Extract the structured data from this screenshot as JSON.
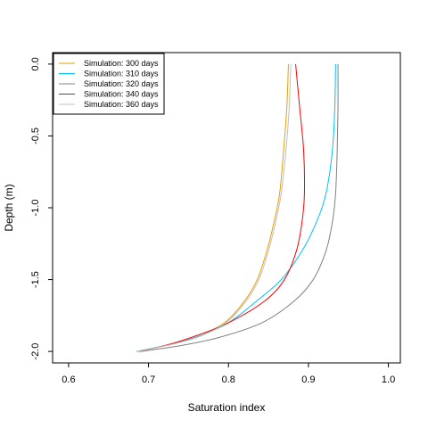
{
  "chart_data": {
    "type": "line",
    "xlabel": "Saturation index",
    "ylabel": "Depth (m)",
    "xlim": [
      0.58,
      1.015
    ],
    "ylim": [
      -2.08,
      0.08
    ],
    "x_ticks": [
      0.6,
      0.7,
      0.8,
      0.9,
      1.0
    ],
    "x_tick_labels": [
      "0.6",
      "0.7",
      "0.8",
      "0.9",
      "1.0"
    ],
    "y_ticks": [
      0.0,
      -0.5,
      -1.0,
      -1.5,
      -2.0
    ],
    "y_tick_labels": [
      "0.0",
      "-0.5",
      "-1.0",
      "-1.5",
      "-2.0"
    ],
    "grid": false,
    "legend_position": "top-left",
    "series": [
      {
        "name": "Simulation: 300 days",
        "color": "#E69F00",
        "x": [
          0.875,
          0.873,
          0.869,
          0.864,
          0.857,
          0.848,
          0.836,
          0.82,
          0.795,
          0.76,
          0.72,
          0.685
        ],
        "y": [
          0.0,
          -0.3,
          -0.6,
          -0.9,
          -1.1,
          -1.3,
          -1.5,
          -1.65,
          -1.8,
          -1.9,
          -1.96,
          -2.0
        ]
      },
      {
        "name": "Simulation: 310 days",
        "color": "#00BFFF",
        "x": [
          0.934,
          0.933,
          0.93,
          0.922,
          0.91,
          0.892,
          0.866,
          0.835,
          0.8,
          0.76,
          0.72,
          0.685
        ],
        "y": [
          0.0,
          -0.3,
          -0.6,
          -0.9,
          -1.1,
          -1.3,
          -1.5,
          -1.65,
          -1.8,
          -1.9,
          -1.96,
          -2.0
        ]
      },
      {
        "name": "Simulation: 320 days",
        "color": "#808080",
        "x": [
          0.937,
          0.937,
          0.936,
          0.934,
          0.93,
          0.922,
          0.906,
          0.882,
          0.842,
          0.79,
          0.74,
          0.69
        ],
        "y": [
          0.0,
          -0.3,
          -0.6,
          -0.9,
          -1.1,
          -1.3,
          -1.5,
          -1.65,
          -1.8,
          -1.9,
          -1.96,
          -2.0
        ]
      },
      {
        "name": "Simulation: 340 days",
        "color": "#FF0000",
        "x": [
          0.884,
          0.889,
          0.894,
          0.895,
          0.892,
          0.885,
          0.87,
          0.845,
          0.8,
          0.755,
          0.72,
          0.688
        ],
        "y": [
          0.0,
          -0.3,
          -0.6,
          -0.9,
          -1.1,
          -1.3,
          -1.5,
          -1.65,
          -1.8,
          -1.9,
          -1.96,
          -2.0
        ]
      },
      {
        "name": "Simulation: 360 days",
        "color": "#C0C0C0",
        "x": [
          0.878,
          0.876,
          0.872,
          0.866,
          0.859,
          0.85,
          0.838,
          0.822,
          0.797,
          0.762,
          0.722,
          0.686
        ],
        "y": [
          0.0,
          -0.3,
          -0.6,
          -0.9,
          -1.1,
          -1.3,
          -1.5,
          -1.65,
          -1.8,
          -1.9,
          -1.96,
          -2.0
        ]
      }
    ]
  }
}
